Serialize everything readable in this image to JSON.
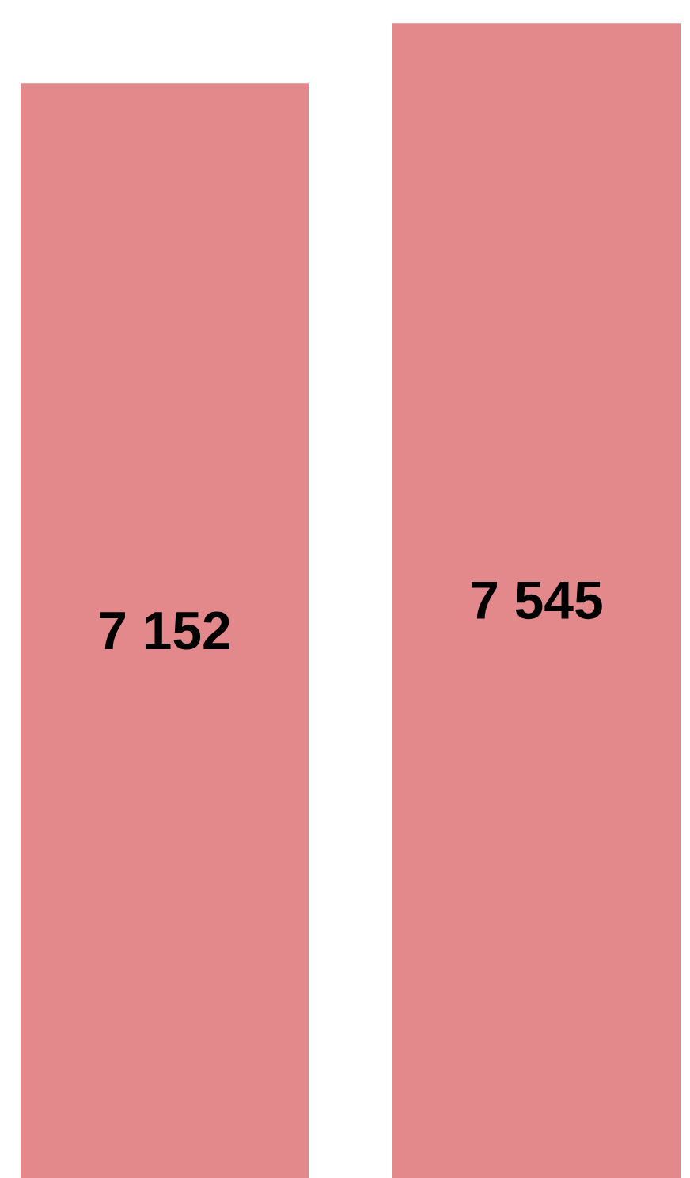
{
  "chart_data": {
    "type": "bar",
    "categories": [
      null,
      null
    ],
    "values": [
      7152,
      7545
    ],
    "color": "#e3898b",
    "value_labels": [
      "7 152",
      "7 545"
    ]
  }
}
